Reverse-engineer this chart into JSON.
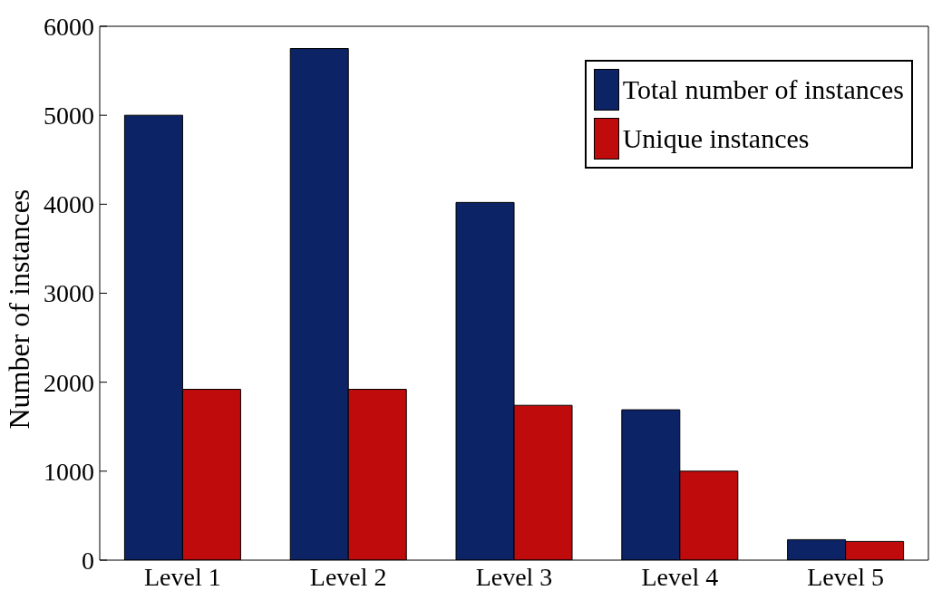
{
  "chart_data": {
    "type": "bar",
    "ylabel": "Number of instances",
    "categories": [
      "Level 1",
      "Level 2",
      "Level 3",
      "Level 4",
      "Level 5"
    ],
    "series": [
      {
        "name": "Total number of instances",
        "color": "#0c2466",
        "values": [
          5000,
          5750,
          4020,
          1690,
          230
        ]
      },
      {
        "name": "Unique instances",
        "color": "#bf0b0b",
        "values": [
          1920,
          1920,
          1740,
          1000,
          210
        ]
      }
    ],
    "ylim": [
      0,
      6000
    ],
    "yticks": [
      0,
      1000,
      2000,
      3000,
      4000,
      5000,
      6000
    ],
    "legend": "top right"
  }
}
